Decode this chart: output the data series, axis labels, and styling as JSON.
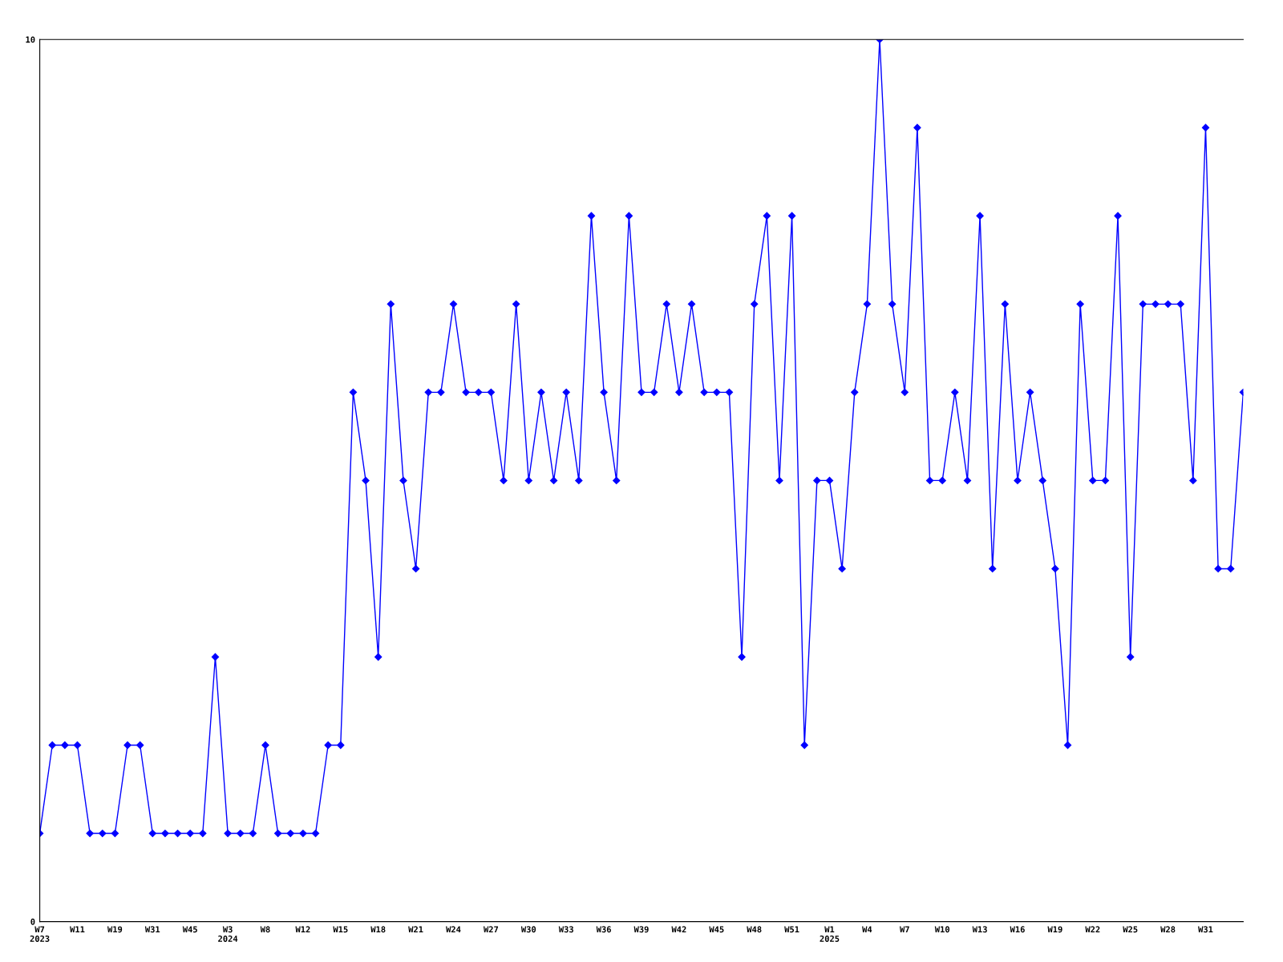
{
  "chart_data": {
    "type": "line",
    "categories": [
      "W7\n2023",
      null,
      null,
      "W11",
      null,
      null,
      "W19",
      null,
      null,
      "W31",
      null,
      null,
      "W45",
      null,
      null,
      "W3\n2024",
      null,
      null,
      "W8",
      null,
      null,
      "W12",
      null,
      null,
      "W15",
      null,
      null,
      "W18",
      null,
      null,
      "W21",
      null,
      null,
      "W24",
      null,
      null,
      "W27",
      null,
      null,
      "W30",
      null,
      null,
      "W33",
      null,
      null,
      "W36",
      null,
      null,
      "W39",
      null,
      null,
      "W42",
      null,
      null,
      "W45",
      null,
      null,
      "W48",
      null,
      null,
      "W51",
      null,
      null,
      "W1\n2025",
      null,
      null,
      "W4",
      null,
      null,
      "W7",
      null,
      null,
      "W10",
      null,
      null,
      "W13",
      null,
      null,
      "W16",
      null,
      null,
      "W19",
      null,
      null,
      "W22",
      null,
      null,
      "W25",
      null,
      null,
      "W28",
      null,
      null,
      "W31",
      null,
      null,
      null
    ],
    "series": [
      {
        "color": "#0000ff",
        "values": [
          1,
          2,
          2,
          2,
          1,
          1,
          1,
          2,
          2,
          1,
          1,
          1,
          1,
          1,
          3,
          1,
          1,
          1,
          2,
          1,
          1,
          1,
          1,
          2,
          2,
          6,
          5,
          3,
          7,
          5,
          4,
          6,
          6,
          7,
          6,
          6,
          6,
          5,
          7,
          5,
          6,
          5,
          6,
          5,
          8,
          6,
          5,
          8,
          6,
          6,
          7,
          6,
          7,
          6,
          6,
          6,
          3,
          7,
          8,
          5,
          8,
          2,
          5,
          5,
          4,
          6,
          7,
          10,
          7,
          6,
          9,
          5,
          5,
          6,
          5,
          8,
          4,
          7,
          5,
          6,
          5,
          4,
          2,
          7,
          5,
          5,
          8,
          3,
          7,
          7,
          7,
          7,
          5,
          9,
          4,
          4,
          6
        ]
      }
    ],
    "ylim": [
      0,
      10
    ],
    "yticks": [
      0,
      10
    ],
    "grid": false,
    "marker": "diamond",
    "line_style": "solid"
  }
}
